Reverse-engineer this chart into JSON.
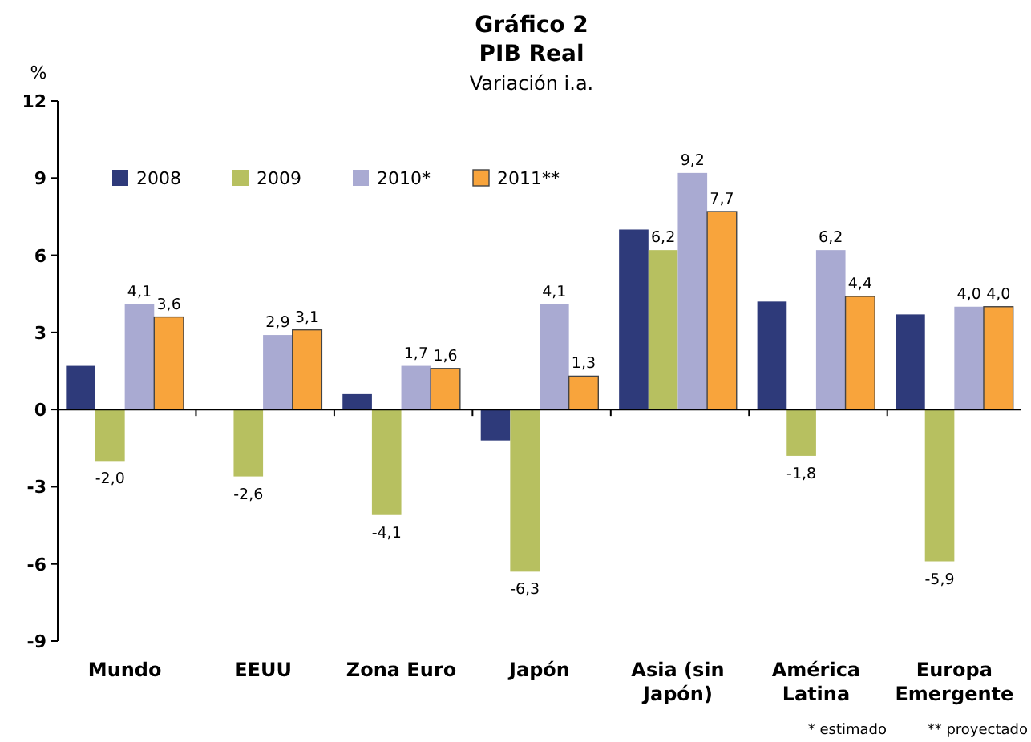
{
  "chart_data": {
    "type": "bar",
    "title": "Gráfico 2",
    "subtitle": "PIB Real",
    "annotations": [
      "Variación i.a.",
      "* estimado",
      "** proyectado"
    ],
    "ylabel": "%",
    "categories": [
      "Mundo",
      "EEUU",
      "Zona Euro",
      "Japón",
      "Asia (sin Japón)",
      "América Latina",
      "Europa Emergente"
    ],
    "series": [
      {
        "name": "2008",
        "color": "#2e3a7a",
        "values": [
          1.7,
          0,
          0.6,
          -1.2,
          7.0,
          4.2,
          3.7
        ]
      },
      {
        "name": "2009",
        "color": "#b7c060",
        "values": [
          -2.0,
          -2.6,
          -4.1,
          -6.3,
          6.2,
          -1.8,
          -5.9
        ],
        "value_labels": [
          "-2,0",
          "-2,6",
          "-4,1",
          "-6,3",
          "6,2",
          "-1,8",
          "-5,9"
        ]
      },
      {
        "name": "2010*",
        "color": "#a9aad2",
        "values": [
          4.1,
          2.9,
          1.7,
          4.1,
          9.2,
          6.2,
          4.0
        ],
        "value_labels": [
          "4,1",
          "2,9",
          "1,7",
          "4,1",
          "9,2",
          "6,2",
          "4,0"
        ]
      },
      {
        "name": "2011**",
        "color": "#f8a43c",
        "values": [
          3.6,
          3.1,
          1.6,
          1.3,
          7.7,
          4.4,
          4.0
        ],
        "value_labels": [
          "3,6",
          "3,1",
          "1,6",
          "1,3",
          "7,7",
          "4,4",
          "4,0"
        ]
      }
    ],
    "ylim": [
      -9,
      12
    ],
    "yticks": [
      -9,
      -6,
      -3,
      0,
      3,
      6,
      9,
      12
    ],
    "legend": "top left"
  }
}
